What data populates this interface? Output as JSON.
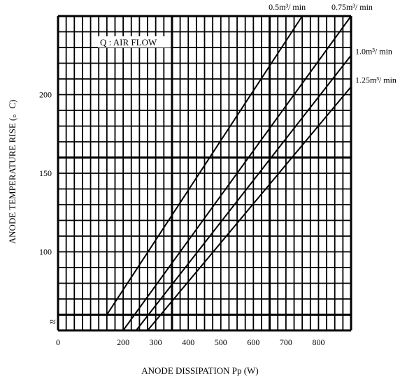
{
  "chart_data": {
    "type": "line",
    "xlabel": "ANODE DISSIPATION Pp (W)",
    "ylabel": "ANODE TEMPERATURE RISE (。C)",
    "annotation": "Q : AIR FLOW",
    "xlim": [
      0,
      900
    ],
    "ylim": [
      50,
      250
    ],
    "x_ticks": [
      {
        "value": 0,
        "label": "0"
      },
      {
        "value": 200,
        "label": "200"
      },
      {
        "value": 300,
        "label": "300"
      },
      {
        "value": 400,
        "label": "400"
      },
      {
        "value": 500,
        "label": "500"
      },
      {
        "value": 600,
        "label": "600"
      },
      {
        "value": 700,
        "label": "700"
      },
      {
        "value": 800,
        "label": "800"
      }
    ],
    "y_ticks": [
      {
        "value": 100,
        "label": "100"
      },
      {
        "value": 150,
        "label": "150"
      },
      {
        "value": 200,
        "label": "200"
      }
    ],
    "axis_break_symbol": "≈",
    "grid": true,
    "series": [
      {
        "name": "0.5m³/ min",
        "x": [
          150,
          750
        ],
        "y": [
          60,
          250
        ]
      },
      {
        "name": "0.75m³/ min",
        "x": [
          200,
          900
        ],
        "y": [
          50,
          250
        ]
      },
      {
        "name": "1.0m³/ min",
        "x": [
          240,
          900
        ],
        "y": [
          50,
          225
        ]
      },
      {
        "name": "1.25m³/ min",
        "x": [
          275,
          900
        ],
        "y": [
          50,
          205
        ]
      }
    ]
  }
}
